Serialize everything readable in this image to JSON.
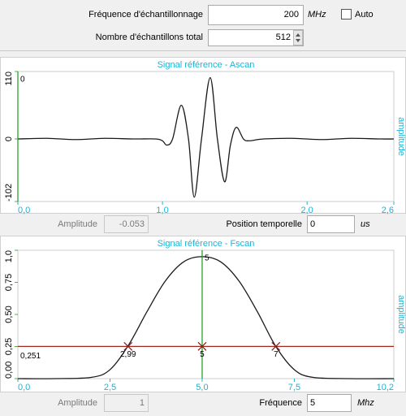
{
  "form": {
    "sampling_label": "Fréquence d'échantillonnage",
    "sampling_value": "200",
    "sampling_unit": "MHz",
    "auto_label": "Auto",
    "samples_label": "Nombre d'échantillons total",
    "samples_value": "512"
  },
  "ascan": {
    "type": "line",
    "title": "Signal référence - Ascan",
    "y_label": "amplitude",
    "xlim": [
      0,
      2.6
    ],
    "xticks": [
      {
        "value": 0,
        "label": "0,0"
      },
      {
        "value": 1,
        "label": "1,0"
      },
      {
        "value": 2,
        "label": "2,0"
      },
      {
        "value": 2.6,
        "label": "2,6"
      }
    ],
    "ylim": [
      -102,
      110
    ],
    "yticks": [
      -102,
      0,
      110
    ],
    "color": "#1a1a1a",
    "cursor": {
      "x": 0,
      "label": "0"
    },
    "x": [
      0,
      0.2,
      0.4,
      0.6,
      0.8,
      0.95,
      1.0,
      1.03,
      1.07,
      1.13,
      1.18,
      1.22,
      1.27,
      1.33,
      1.38,
      1.43,
      1.47,
      1.51,
      1.56,
      1.6,
      1.7,
      1.9,
      2.1,
      2.3,
      2.5,
      2.6
    ],
    "values": [
      0,
      1,
      -1,
      1,
      0,
      0,
      -3,
      -10,
      0,
      55,
      0,
      -95,
      0,
      100,
      0,
      -70,
      -10,
      19,
      0,
      -3,
      0,
      1,
      -1,
      1,
      0,
      0
    ]
  },
  "ascan_footer": {
    "amplitude_label": "Amplitude",
    "amplitude_value": "-0.053",
    "position_label": "Position temporelle",
    "position_value": "0",
    "position_unit": "us"
  },
  "fscan": {
    "type": "line",
    "title": "Signal référence - Fscan",
    "y_label": "amplitude",
    "xlim": [
      0,
      10.2
    ],
    "xticks": [
      {
        "value": 0,
        "label": "0,0"
      },
      {
        "value": 2.5,
        "label": "2,5"
      },
      {
        "value": 5,
        "label": "5,0"
      },
      {
        "value": 7.5,
        "label": "7,5"
      },
      {
        "value": 10.2,
        "label": "10,2"
      }
    ],
    "ylim": [
      0,
      1
    ],
    "yticks": [
      {
        "value": 0,
        "label": "0,00"
      },
      {
        "value": 0.25,
        "label": "0,25"
      },
      {
        "value": 0.5,
        "label": "0,50"
      },
      {
        "value": 0.75,
        "label": "0,75"
      },
      {
        "value": 1,
        "label": "1,0"
      }
    ],
    "color": "#1a1a1a",
    "cursor": {
      "x": 5,
      "label": "5"
    },
    "threshold": {
      "value": 0.251,
      "label": "0,251"
    },
    "markers": [
      {
        "x": 2.99,
        "label": "2,99"
      },
      {
        "x": 5,
        "label": "5"
      },
      {
        "x": 7,
        "label": "7"
      }
    ],
    "x": [
      0,
      1,
      2,
      2.5,
      3,
      3.5,
      4,
      4.5,
      5,
      5.5,
      6,
      6.5,
      7,
      7.5,
      8,
      9,
      10.2
    ],
    "values": [
      0,
      0,
      0.01,
      0.07,
      0.26,
      0.52,
      0.76,
      0.91,
      0.95,
      0.91,
      0.76,
      0.52,
      0.25,
      0.07,
      0.01,
      0,
      0
    ]
  },
  "fscan_footer": {
    "amplitude_label": "Amplitude",
    "amplitude_value": "1",
    "freq_label": "Fréquence",
    "freq_value": "5",
    "freq_unit": "Mhz"
  }
}
